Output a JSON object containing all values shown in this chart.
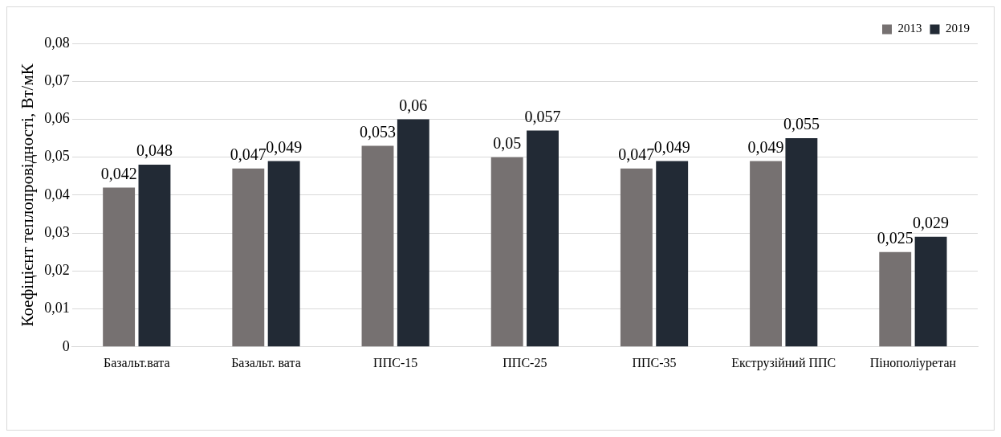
{
  "chart_data": {
    "type": "bar",
    "ylabel": "Коефіцієнт теплопровідності, Вт/мК",
    "categories": [
      "Базальт.вата",
      "Базальт. вата",
      "ППС-15",
      "ППС-25",
      "ППС-35",
      "Екструзійний ППС",
      "Пінополіуретан"
    ],
    "series": [
      {
        "name": "2013",
        "color": "#767171",
        "values": [
          0.042,
          0.047,
          0.053,
          0.05,
          0.047,
          0.049,
          0.025
        ],
        "value_labels": [
          "0,042",
          "0,047",
          "0,053",
          "0,05",
          "0,047",
          "0,049",
          "0,025"
        ]
      },
      {
        "name": "2019",
        "color": "#222a35",
        "values": [
          0.048,
          0.049,
          0.06,
          0.057,
          0.049,
          0.055,
          0.029
        ],
        "value_labels": [
          "0,048",
          "0,049",
          "0,06",
          "0,057",
          "0,049",
          "0,055",
          "0,029"
        ]
      }
    ],
    "ylim": [
      0,
      0.08
    ],
    "yticks": [
      {
        "value": 0,
        "label": "0"
      },
      {
        "value": 0.01,
        "label": "0,01"
      },
      {
        "value": 0.02,
        "label": "0,02"
      },
      {
        "value": 0.03,
        "label": "0,03"
      },
      {
        "value": 0.04,
        "label": "0,04"
      },
      {
        "value": 0.05,
        "label": "0,05"
      },
      {
        "value": 0.06,
        "label": "0,06"
      },
      {
        "value": 0.07,
        "label": "0,07"
      },
      {
        "value": 0.08,
        "label": "0,08"
      }
    ],
    "grid": "y",
    "legend": "top right"
  }
}
